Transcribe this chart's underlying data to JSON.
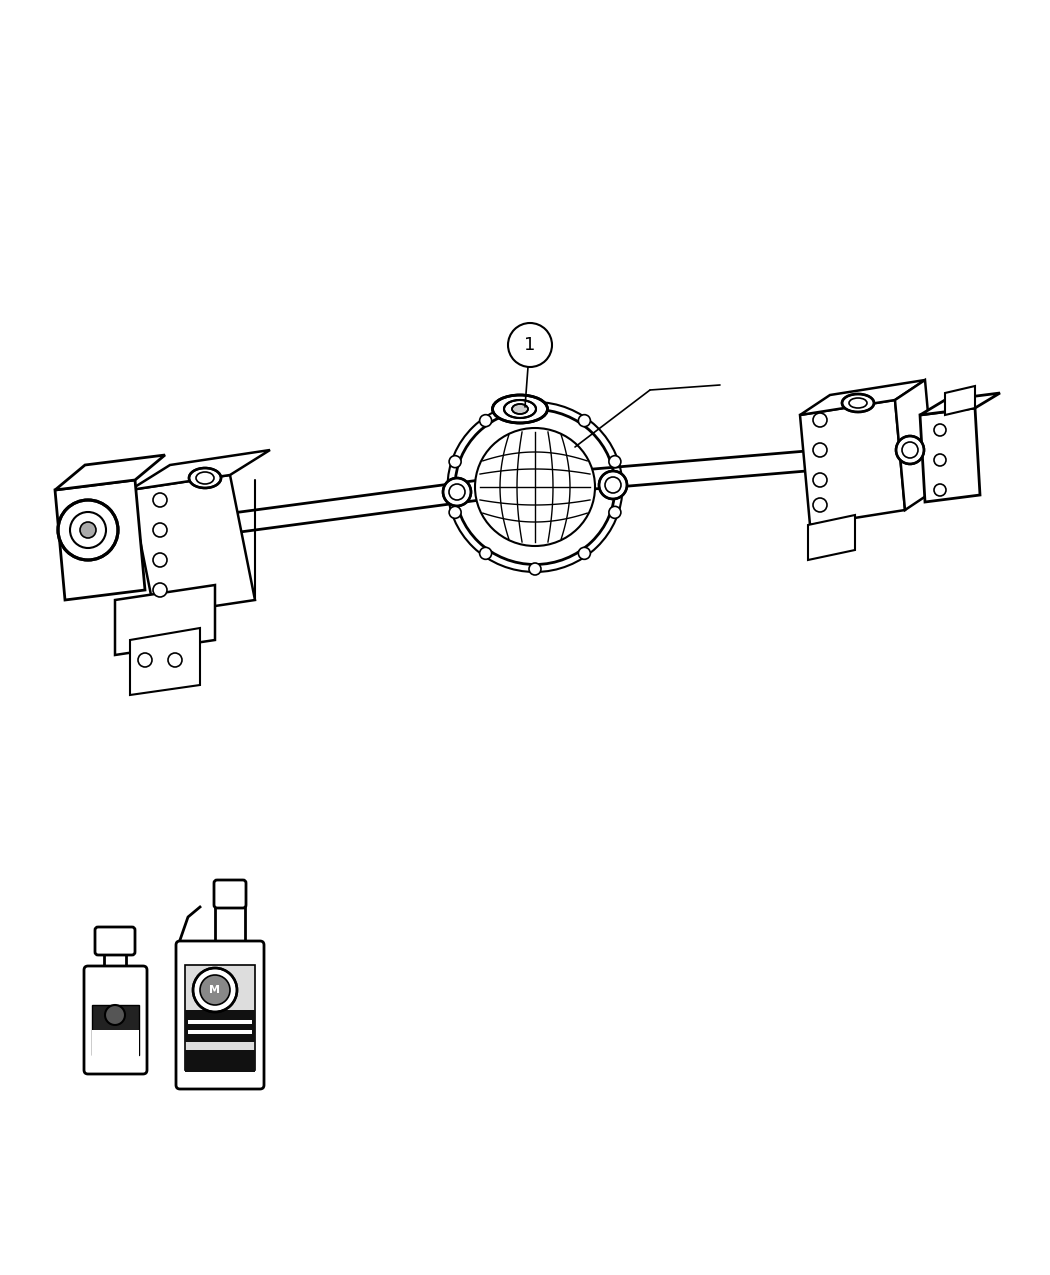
{
  "bg_color": "#ffffff",
  "lc": "#000000",
  "fig_w": 10.5,
  "fig_h": 12.75,
  "dpi": 100,
  "label": "1"
}
